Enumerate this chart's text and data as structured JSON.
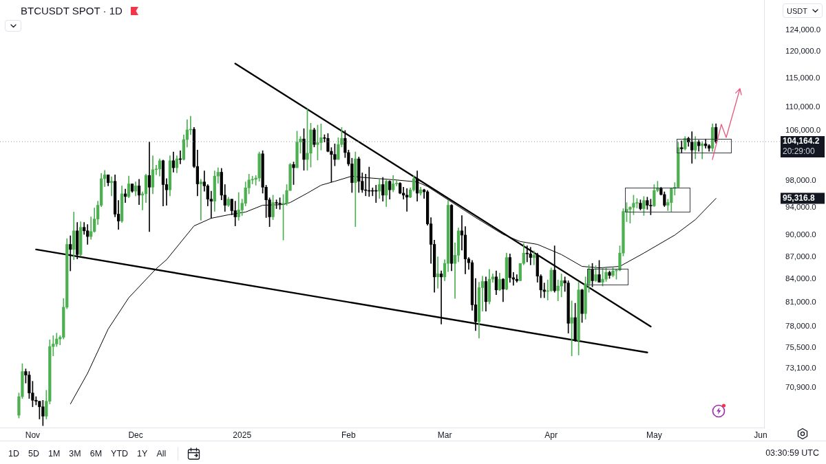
{
  "chart_data": {
    "type": "candlestick",
    "title": "BTCUSDT SPOT · 1D",
    "log": "y",
    "x": [
      "2024-10-28",
      "2024-10-29",
      "2024-10-30",
      "2024-10-31",
      "2024-11-01",
      "2024-11-02",
      "2024-11-03",
      "2024-11-04",
      "2024-11-05",
      "2024-11-06",
      "2024-11-07",
      "2024-11-08",
      "2024-11-09",
      "2024-11-10",
      "2024-11-11",
      "2024-11-12",
      "2024-11-13",
      "2024-11-14",
      "2024-11-15",
      "2024-11-16",
      "2024-11-17",
      "2024-11-18",
      "2024-11-19",
      "2024-11-20",
      "2024-11-21",
      "2024-11-22",
      "2024-11-23",
      "2024-11-24",
      "2024-11-25",
      "2024-11-26",
      "2024-11-27",
      "2024-11-28",
      "2024-11-29",
      "2024-11-30",
      "2024-12-01",
      "2024-12-02",
      "2024-12-03",
      "2024-12-04",
      "2024-12-05",
      "2024-12-06",
      "2024-12-07",
      "2024-12-08",
      "2024-12-09",
      "2024-12-10",
      "2024-12-11",
      "2024-12-12",
      "2024-12-13",
      "2024-12-14",
      "2024-12-15",
      "2024-12-16",
      "2024-12-17",
      "2024-12-18",
      "2024-12-19",
      "2024-12-20",
      "2024-12-21",
      "2024-12-22",
      "2024-12-23",
      "2024-12-24",
      "2024-12-25",
      "2024-12-26",
      "2024-12-27",
      "2024-12-28",
      "2024-12-29",
      "2024-12-30",
      "2024-12-31",
      "2025-01-01",
      "2025-01-02",
      "2025-01-03",
      "2025-01-04",
      "2025-01-05",
      "2025-01-06",
      "2025-01-07",
      "2025-01-08",
      "2025-01-09",
      "2025-01-10",
      "2025-01-11",
      "2025-01-12",
      "2025-01-13",
      "2025-01-14",
      "2025-01-15",
      "2025-01-16",
      "2025-01-17",
      "2025-01-18",
      "2025-01-19",
      "2025-01-20",
      "2025-01-21",
      "2025-01-22",
      "2025-01-23",
      "2025-01-24",
      "2025-01-25",
      "2025-01-26",
      "2025-01-27",
      "2025-01-28",
      "2025-01-29",
      "2025-01-30",
      "2025-01-31",
      "2025-02-01",
      "2025-02-02",
      "2025-02-03",
      "2025-02-04",
      "2025-02-05",
      "2025-02-06",
      "2025-02-07",
      "2025-02-08",
      "2025-02-09",
      "2025-02-10",
      "2025-02-11",
      "2025-02-12",
      "2025-02-13",
      "2025-02-14",
      "2025-02-15",
      "2025-02-16",
      "2025-02-17",
      "2025-02-18",
      "2025-02-19",
      "2025-02-20",
      "2025-02-21",
      "2025-02-22",
      "2025-02-23",
      "2025-02-24",
      "2025-02-25",
      "2025-02-26",
      "2025-02-27",
      "2025-02-28",
      "2025-03-01",
      "2025-03-02",
      "2025-03-03",
      "2025-03-04",
      "2025-03-05",
      "2025-03-06",
      "2025-03-07",
      "2025-03-08",
      "2025-03-09",
      "2025-03-10",
      "2025-03-11",
      "2025-03-12",
      "2025-03-13",
      "2025-03-14",
      "2025-03-15",
      "2025-03-16",
      "2025-03-17",
      "2025-03-18",
      "2025-03-19",
      "2025-03-20",
      "2025-03-21",
      "2025-03-22",
      "2025-03-23",
      "2025-03-24",
      "2025-03-25",
      "2025-03-26",
      "2025-03-27",
      "2025-03-28",
      "2025-03-29",
      "2025-03-30",
      "2025-03-31",
      "2025-04-01",
      "2025-04-02",
      "2025-04-03",
      "2025-04-04",
      "2025-04-05",
      "2025-04-06",
      "2025-04-07",
      "2025-04-08",
      "2025-04-09",
      "2025-04-10",
      "2025-04-11",
      "2025-04-12",
      "2025-04-13",
      "2025-04-14",
      "2025-04-15",
      "2025-04-16",
      "2025-04-17",
      "2025-04-18",
      "2025-04-19",
      "2025-04-20",
      "2025-04-21",
      "2025-04-22",
      "2025-04-23",
      "2025-04-24",
      "2025-04-25",
      "2025-04-26",
      "2025-04-27",
      "2025-04-28",
      "2025-04-29",
      "2025-04-30",
      "2025-05-01",
      "2025-05-02",
      "2025-05-03",
      "2025-05-04",
      "2025-05-05",
      "2025-05-06",
      "2025-05-07",
      "2025-05-08",
      "2025-05-09",
      "2025-05-10",
      "2025-05-11",
      "2025-05-12",
      "2025-05-13",
      "2025-05-14",
      "2025-05-15",
      "2025-05-16",
      "2025-05-17",
      "2025-05-18",
      "2025-05-19"
    ],
    "ohlc": [
      [
        67900,
        70300,
        67600,
        69900
      ],
      [
        69900,
        73600,
        69700,
        72700
      ],
      [
        72700,
        73000,
        71400,
        72300
      ],
      [
        72300,
        72700,
        69700,
        70300
      ],
      [
        70300,
        71600,
        68800,
        69500
      ],
      [
        69500,
        69900,
        69000,
        69400
      ],
      [
        69400,
        69400,
        67500,
        68800
      ],
      [
        68800,
        69500,
        66800,
        67800
      ],
      [
        67800,
        70600,
        67500,
        69400
      ],
      [
        69400,
        76400,
        69100,
        75600
      ],
      [
        75600,
        76900,
        74500,
        75900
      ],
      [
        75900,
        77200,
        75600,
        76500
      ],
      [
        76500,
        76900,
        75800,
        76700
      ],
      [
        76700,
        81500,
        76500,
        80400
      ],
      [
        80400,
        89500,
        80200,
        88700
      ],
      [
        88700,
        89900,
        85100,
        88000
      ],
      [
        88000,
        93300,
        86600,
        90600
      ],
      [
        90600,
        91800,
        86700,
        87300
      ],
      [
        87300,
        91900,
        87100,
        91100
      ],
      [
        91100,
        91800,
        90100,
        90600
      ],
      [
        90600,
        91500,
        88700,
        89800
      ],
      [
        89800,
        92600,
        89400,
        90500
      ],
      [
        90500,
        93900,
        90400,
        92300
      ],
      [
        92300,
        94900,
        91500,
        94300
      ],
      [
        94300,
        99100,
        94100,
        98300
      ],
      [
        98300,
        99600,
        97100,
        98900
      ],
      [
        98900,
        98900,
        97200,
        97700
      ],
      [
        97700,
        98600,
        95700,
        97900
      ],
      [
        97900,
        98900,
        92600,
        93000
      ],
      [
        93000,
        95000,
        90800,
        92000
      ],
      [
        92000,
        97200,
        91800,
        96000
      ],
      [
        96000,
        96700,
        94700,
        95600
      ],
      [
        95600,
        98700,
        95400,
        97500
      ],
      [
        97500,
        97500,
        96200,
        96400
      ],
      [
        96400,
        97800,
        95700,
        97200
      ],
      [
        97200,
        98200,
        94400,
        95800
      ],
      [
        95800,
        96300,
        93600,
        96000
      ],
      [
        96000,
        99000,
        94700,
        98800
      ],
      [
        98800,
        104100,
        90500,
        97000
      ],
      [
        97000,
        101900,
        96000,
        99700
      ],
      [
        99700,
        100400,
        98900,
        99800
      ],
      [
        99800,
        101400,
        98700,
        101100
      ],
      [
        101100,
        101200,
        94200,
        97400
      ],
      [
        97400,
        98300,
        94300,
        96600
      ],
      [
        96600,
        101900,
        95700,
        101100
      ],
      [
        101100,
        102500,
        99300,
        100000
      ],
      [
        100000,
        101900,
        99200,
        101400
      ],
      [
        101400,
        102700,
        100600,
        101300
      ],
      [
        101300,
        105300,
        101200,
        104500
      ],
      [
        104500,
        107800,
        103300,
        106100
      ],
      [
        106100,
        108400,
        105300,
        106200
      ],
      [
        106200,
        106500,
        100000,
        100200
      ],
      [
        100200,
        102800,
        95700,
        97500
      ],
      [
        97500,
        98200,
        92100,
        97800
      ],
      [
        97800,
        99500,
        96400,
        97200
      ],
      [
        97200,
        97400,
        94200,
        95200
      ],
      [
        95200,
        96400,
        92400,
        94900
      ],
      [
        94900,
        99500,
        93400,
        98700
      ],
      [
        98700,
        100000,
        97600,
        99300
      ],
      [
        99300,
        99900,
        95100,
        95800
      ],
      [
        95800,
        97400,
        93400,
        94300
      ],
      [
        94300,
        95500,
        94100,
        95200
      ],
      [
        95200,
        95200,
        92900,
        93500
      ],
      [
        93500,
        94900,
        91300,
        92600
      ],
      [
        92600,
        96200,
        92100,
        93600
      ],
      [
        93600,
        95200,
        92800,
        94600
      ],
      [
        94600,
        97800,
        94200,
        96900
      ],
      [
        96900,
        99000,
        96000,
        98100
      ],
      [
        98100,
        98700,
        97500,
        98200
      ],
      [
        98200,
        98800,
        97300,
        98400
      ],
      [
        98400,
        102500,
        97900,
        102200
      ],
      [
        102200,
        102700,
        96100,
        97000
      ],
      [
        97000,
        97300,
        92500,
        95100
      ],
      [
        95100,
        95400,
        91200,
        92600
      ],
      [
        92600,
        95800,
        92200,
        94700
      ],
      [
        94700,
        95100,
        93800,
        94600
      ],
      [
        94600,
        95400,
        93700,
        94500
      ],
      [
        94500,
        95900,
        89300,
        94600
      ],
      [
        94600,
        97400,
        94300,
        96500
      ],
      [
        96500,
        100700,
        96500,
        100500
      ],
      [
        100500,
        100900,
        97400,
        100000
      ],
      [
        100000,
        105900,
        100000,
        104100
      ],
      [
        104100,
        105000,
        102300,
        104600
      ],
      [
        104600,
        106300,
        99600,
        101300
      ],
      [
        101300,
        109600,
        99600,
        102300
      ],
      [
        102300,
        107200,
        100100,
        106100
      ],
      [
        106100,
        106400,
        103300,
        103700
      ],
      [
        103700,
        106900,
        101200,
        104000
      ],
      [
        104000,
        107100,
        102800,
        104800
      ],
      [
        104800,
        105300,
        104100,
        104700
      ],
      [
        104700,
        105500,
        102500,
        102600
      ],
      [
        102600,
        103200,
        97800,
        102100
      ],
      [
        102100,
        103800,
        100300,
        101300
      ],
      [
        101300,
        104800,
        101300,
        103700
      ],
      [
        103700,
        106500,
        103300,
        104700
      ],
      [
        104700,
        106000,
        101600,
        102400
      ],
      [
        102400,
        102800,
        100300,
        100600
      ],
      [
        100600,
        101500,
        96200,
        97700
      ],
      [
        97700,
        102500,
        91200,
        101400
      ],
      [
        101400,
        101700,
        96200,
        97900
      ],
      [
        97900,
        99200,
        96200,
        96600
      ],
      [
        96600,
        99000,
        95700,
        96500
      ],
      [
        96500,
        100100,
        95600,
        96400
      ],
      [
        96400,
        96900,
        95700,
        96400
      ],
      [
        96400,
        97300,
        94700,
        96400
      ],
      [
        96400,
        98300,
        95300,
        97400
      ],
      [
        97400,
        98500,
        94900,
        95800
      ],
      [
        95800,
        98100,
        94100,
        97900
      ],
      [
        97900,
        98000,
        95200,
        96600
      ],
      [
        96600,
        98800,
        96300,
        97500
      ],
      [
        97500,
        98000,
        97200,
        97600
      ],
      [
        97600,
        97700,
        96000,
        96100
      ],
      [
        96100,
        97000,
        95200,
        95800
      ],
      [
        95800,
        96800,
        93400,
        95500
      ],
      [
        95500,
        96900,
        95400,
        96600
      ],
      [
        96600,
        98800,
        96400,
        98300
      ],
      [
        98300,
        99500,
        94900,
        96100
      ],
      [
        96100,
        97000,
        95800,
        96600
      ],
      [
        96600,
        96700,
        95300,
        96300
      ],
      [
        96300,
        96500,
        91400,
        91600
      ],
      [
        91600,
        92500,
        86100,
        88700
      ],
      [
        88700,
        89300,
        82300,
        84300
      ],
      [
        84300,
        87000,
        82800,
        84700
      ],
      [
        84700,
        85100,
        78300,
        84300
      ],
      [
        84300,
        86600,
        83800,
        86100
      ],
      [
        86100,
        95000,
        85000,
        94300
      ],
      [
        94300,
        94400,
        85100,
        86100
      ],
      [
        86100,
        88900,
        81500,
        87200
      ],
      [
        87200,
        91000,
        86300,
        90600
      ],
      [
        90600,
        92800,
        87900,
        90000
      ],
      [
        90000,
        91200,
        84700,
        86700
      ],
      [
        86700,
        86900,
        85300,
        86200
      ],
      [
        86200,
        86500,
        80000,
        80700
      ],
      [
        80700,
        84100,
        77500,
        78600
      ],
      [
        78600,
        83600,
        76600,
        82900
      ],
      [
        82900,
        84400,
        79900,
        83700
      ],
      [
        83700,
        84300,
        79900,
        81100
      ],
      [
        81100,
        85300,
        80800,
        84000
      ],
      [
        84000,
        84700,
        83600,
        84300
      ],
      [
        84300,
        85100,
        82000,
        82600
      ],
      [
        82600,
        84800,
        82500,
        84000
      ],
      [
        84000,
        84100,
        81100,
        82700
      ],
      [
        82700,
        87500,
        82600,
        86900
      ],
      [
        86900,
        87400,
        83600,
        84200
      ],
      [
        84200,
        84900,
        83200,
        84000
      ],
      [
        84000,
        84600,
        83600,
        83800
      ],
      [
        83800,
        86100,
        83800,
        86100
      ],
      [
        86100,
        88800,
        85900,
        87500
      ],
      [
        87500,
        88500,
        86300,
        87400
      ],
      [
        87400,
        88300,
        85900,
        86900
      ],
      [
        86900,
        87800,
        85900,
        87200
      ],
      [
        87200,
        87500,
        83600,
        84400
      ],
      [
        84400,
        84600,
        81600,
        82600
      ],
      [
        82600,
        83500,
        81600,
        82400
      ],
      [
        82400,
        83900,
        81300,
        82500
      ],
      [
        82500,
        85500,
        82400,
        85200
      ],
      [
        85200,
        88500,
        82300,
        82500
      ],
      [
        82500,
        83900,
        81200,
        83100
      ],
      [
        83100,
        84700,
        81700,
        83800
      ],
      [
        83800,
        84300,
        82400,
        83500
      ],
      [
        83500,
        83800,
        77200,
        78400
      ],
      [
        78400,
        81200,
        74500,
        79100
      ],
      [
        79100,
        80900,
        76200,
        76300
      ],
      [
        76300,
        83600,
        74600,
        82600
      ],
      [
        82600,
        82700,
        78500,
        79600
      ],
      [
        79600,
        84300,
        78900,
        83400
      ],
      [
        83400,
        85900,
        82300,
        85300
      ],
      [
        85300,
        86100,
        83000,
        83800
      ],
      [
        83800,
        85800,
        83700,
        84600
      ],
      [
        84600,
        86500,
        83600,
        83600
      ],
      [
        83600,
        85500,
        83100,
        84000
      ],
      [
        84000,
        85500,
        83700,
        84900
      ],
      [
        84900,
        85100,
        84100,
        84500
      ],
      [
        84500,
        85600,
        84300,
        85100
      ],
      [
        85100,
        85300,
        84000,
        85200
      ],
      [
        85200,
        88500,
        85100,
        87500
      ],
      [
        87500,
        93800,
        87100,
        93400
      ],
      [
        93400,
        94700,
        91900,
        93700
      ],
      [
        93700,
        94100,
        91700,
        94000
      ],
      [
        94000,
        95800,
        92900,
        94600
      ],
      [
        94600,
        95300,
        93900,
        94600
      ],
      [
        94600,
        95100,
        93600,
        93800
      ],
      [
        93800,
        95600,
        92800,
        95000
      ],
      [
        95000,
        95500,
        93700,
        94300
      ],
      [
        94300,
        95200,
        92900,
        94200
      ],
      [
        94200,
        97400,
        94100,
        96500
      ],
      [
        96500,
        97900,
        96300,
        96900
      ],
      [
        96900,
        97000,
        95800,
        95900
      ],
      [
        95900,
        96300,
        94100,
        94300
      ],
      [
        94300,
        95200,
        93500,
        94700
      ],
      [
        94700,
        96900,
        93400,
        96800
      ],
      [
        96800,
        97700,
        95800,
        97000
      ],
      [
        97000,
        104100,
        96900,
        103200
      ],
      [
        103200,
        104300,
        102300,
        103000
      ],
      [
        103000,
        105000,
        102800,
        104700
      ],
      [
        104700,
        104900,
        103400,
        104100
      ],
      [
        104100,
        105800,
        100700,
        102800
      ],
      [
        102800,
        105000,
        101400,
        104100
      ],
      [
        104100,
        104400,
        102600,
        103500
      ],
      [
        103500,
        104200,
        101400,
        103800
      ],
      [
        103800,
        104600,
        103100,
        103500
      ],
      [
        103500,
        103700,
        102600,
        103100
      ],
      [
        103100,
        107100,
        102600,
        106500
      ],
      [
        106500,
        107100,
        103900,
        104164.2
      ]
    ],
    "colors": [
      "#4caf50",
      "#4caf50",
      "#000000",
      "#000000",
      "#000000",
      "#000000",
      "#000000",
      "#000000",
      "#4caf50",
      "#4caf50",
      "#4caf50",
      "#4caf50",
      "#4caf50",
      "#4caf50",
      "#4caf50",
      "#000000",
      "#4caf50",
      "#000000",
      "#4caf50",
      "#000000",
      "#000000",
      "#4caf50",
      "#4caf50",
      "#4caf50",
      "#4caf50",
      "#4caf50",
      "#000000",
      "#4caf50",
      "#000000",
      "#000000",
      "#4caf50",
      "#000000",
      "#4caf50",
      "#000000",
      "#4caf50",
      "#000000",
      "#4caf50",
      "#4caf50",
      "#000000",
      "#4caf50",
      "#4caf50",
      "#4caf50",
      "#000000",
      "#000000",
      "#4caf50",
      "#000000",
      "#4caf50",
      "#000000",
      "#4caf50",
      "#4caf50",
      "#4caf50",
      "#000000",
      "#000000",
      "#4caf50",
      "#000000",
      "#000000",
      "#000000",
      "#4caf50",
      "#4caf50",
      "#000000",
      "#000000",
      "#4caf50",
      "#000000",
      "#000000",
      "#4caf50",
      "#4caf50",
      "#4caf50",
      "#4caf50",
      "#4caf50",
      "#4caf50",
      "#4caf50",
      "#000000",
      "#000000",
      "#000000",
      "#4caf50",
      "#000000",
      "#000000",
      "#4caf50",
      "#4caf50",
      "#4caf50",
      "#000000",
      "#4caf50",
      "#4caf50",
      "#000000",
      "#4caf50",
      "#4caf50",
      "#000000",
      "#4caf50",
      "#4caf50",
      "#000000",
      "#000000",
      "#000000",
      "#000000",
      "#4caf50",
      "#4caf50",
      "#000000",
      "#000000",
      "#000000",
      "#4caf50",
      "#000000",
      "#000000",
      "#000000",
      "#000000",
      "#000000",
      "#000000",
      "#4caf50",
      "#000000",
      "#4caf50",
      "#000000",
      "#4caf50",
      "#4caf50",
      "#000000",
      "#000000",
      "#000000",
      "#4caf50",
      "#4caf50",
      "#000000",
      "#4caf50",
      "#000000",
      "#000000",
      "#000000",
      "#000000",
      "#4caf50",
      "#000000",
      "#4caf50",
      "#4caf50",
      "#000000",
      "#4caf50",
      "#4caf50",
      "#000000",
      "#000000",
      "#000000",
      "#000000",
      "#000000",
      "#4caf50",
      "#4caf50",
      "#000000",
      "#4caf50",
      "#4caf50",
      "#000000",
      "#4caf50",
      "#000000",
      "#4caf50",
      "#000000",
      "#000000",
      "#000000",
      "#4caf50",
      "#4caf50",
      "#000000",
      "#000000",
      "#4caf50",
      "#000000",
      "#000000",
      "#000000",
      "#4caf50",
      "#4caf50",
      "#000000",
      "#4caf50",
      "#4caf50",
      "#000000",
      "#000000",
      "#4caf50",
      "#000000",
      "#4caf50",
      "#000000",
      "#4caf50",
      "#4caf50",
      "#000000",
      "#4caf50",
      "#000000",
      "#4caf50",
      "#4caf50",
      "#000000",
      "#4caf50",
      "#4caf50",
      "#4caf50",
      "#4caf50",
      "#4caf50",
      "#4caf50",
      "#4caf50",
      "#4caf50",
      "#000000",
      "#4caf50",
      "#000000",
      "#000000",
      "#4caf50",
      "#4caf50",
      "#000000",
      "#000000",
      "#4caf50",
      "#4caf50",
      "#4caf50",
      "#4caf50",
      "#000000",
      "#4caf50",
      "#000000",
      "#000000",
      "#4caf50",
      "#000000",
      "#4caf50",
      "#000000",
      "#000000",
      "#4caf50",
      "#000000"
    ],
    "series": [
      {
        "type": "line",
        "color": "#000000",
        "x": [
          "2024-11-12",
          "2024-11-17",
          "2024-11-23",
          "2024-11-29",
          "2024-12-07",
          "2024-12-10",
          "2024-12-18",
          "2024-12-23",
          "2024-12-28",
          "2025-01-02",
          "2025-01-07",
          "2025-01-13",
          "2025-01-15",
          "2025-01-20",
          "2025-01-24",
          "2025-01-28",
          "2025-02-02",
          "2025-02-05",
          "2025-02-15",
          "2025-02-21",
          "2025-02-24",
          "2025-03-02",
          "2025-03-10",
          "2025-03-18",
          "2025-03-23",
          "2025-03-28",
          "2025-04-04",
          "2025-04-10",
          "2025-04-15",
          "2025-04-21",
          "2025-04-28",
          "2025-05-07",
          "2025-05-13",
          "2025-05-19"
        ],
        "values": [
          69100,
          72500,
          77700,
          81600,
          85400,
          86600,
          91300,
          92400,
          92900,
          93300,
          94300,
          94400,
          94700,
          96100,
          97300,
          97900,
          98700,
          98500,
          98100,
          97800,
          97100,
          95100,
          92500,
          90100,
          89100,
          88700,
          87300,
          85700,
          85500,
          85700,
          87500,
          90000,
          92200,
          95316.8
        ]
      },
      {
        "type": "line",
        "color": "#000000",
        "x": [
          "2024-12-30",
          "2025-04-30"
        ],
        "values": [
          117700,
          78000
        ]
      },
      {
        "type": "line",
        "color": "#000000",
        "x": [
          "2024-11-02",
          "2025-04-29"
        ],
        "values": [
          88000,
          74900
        ]
      }
    ],
    "xlim": [
      "2024-10-22T12:00",
      "2025-06-02"
    ],
    "xticks": [
      {
        "value": "2024-11-01",
        "label": "Nov"
      },
      {
        "value": "2024-12-01",
        "label": "Dec"
      },
      {
        "value": "2025-01-01",
        "label": "2025"
      },
      {
        "value": "2025-02-01",
        "label": "Feb"
      },
      {
        "value": "2025-03-01",
        "label": "Mar"
      },
      {
        "value": "2025-04-01",
        "label": "Apr"
      },
      {
        "value": "2025-05-01",
        "label": "May"
      },
      {
        "value": "2025-06-01",
        "label": "Jun"
      }
    ],
    "ylim": [
      66600,
      130000
    ],
    "yticks": [
      {
        "value": 124000,
        "label": "124,000.0"
      },
      {
        "value": 120000,
        "label": "120,000.0"
      },
      {
        "value": 115000,
        "label": "115,000.0"
      },
      {
        "value": 110000,
        "label": "110,000.0"
      },
      {
        "value": 106000,
        "label": "106,000.0"
      },
      {
        "value": 98000,
        "label": "98,000.0"
      },
      {
        "value": 94000,
        "label": "94,000.0"
      },
      {
        "value": 90000,
        "label": "90,000.0"
      },
      {
        "value": 87000,
        "label": "87,000.0"
      },
      {
        "value": 84000,
        "label": "84,000.0"
      },
      {
        "value": 81000,
        "label": "81,000.0"
      },
      {
        "value": 78000,
        "label": "78,000.0"
      },
      {
        "value": 75500,
        "label": "75,500.0"
      },
      {
        "value": 73100,
        "label": "73,100.0"
      },
      {
        "value": 70900,
        "label": "70,900.0"
      }
    ],
    "ref_lines": [
      {
        "axis": "y",
        "value": 104164.2,
        "label": "104,164.2",
        "line_style": "dotted",
        "color": "#9598a1"
      }
    ],
    "annotations": [
      "20:29:00",
      "95,316.8",
      "1D",
      "5D",
      "1M",
      "3M",
      "6M",
      "YTD",
      "1Y",
      "All",
      "03:30:59 UTC",
      "USDT"
    ]
  }
}
